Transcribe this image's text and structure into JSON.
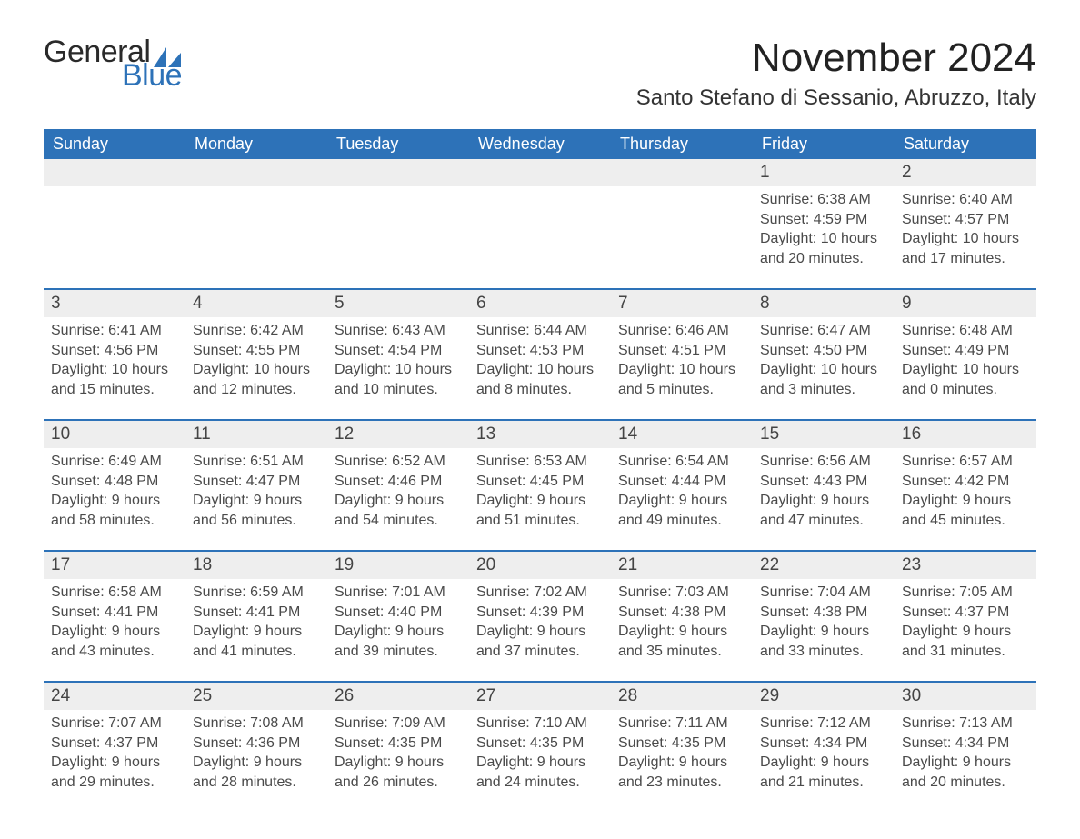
{
  "logo": {
    "word1": "General",
    "word2": "Blue",
    "accent_color": "#2d72b8"
  },
  "header": {
    "month_title": "November 2024",
    "location": "Santo Stefano di Sessanio, Abruzzo, Italy"
  },
  "colors": {
    "header_blue": "#2d72b8",
    "row_gray": "#eeeeee",
    "background": "#ffffff",
    "text": "#3a3a3a"
  },
  "typography": {
    "title_fontsize": 44,
    "location_fontsize": 24,
    "body_fontsize": 16,
    "weekday_fontsize": 18
  },
  "weekdays": [
    "Sunday",
    "Monday",
    "Tuesday",
    "Wednesday",
    "Thursday",
    "Friday",
    "Saturday"
  ],
  "weeks": [
    [
      null,
      null,
      null,
      null,
      null,
      {
        "day": "1",
        "sunrise": "Sunrise: 6:38 AM",
        "sunset": "Sunset: 4:59 PM",
        "daylight": "Daylight: 10 hours and 20 minutes."
      },
      {
        "day": "2",
        "sunrise": "Sunrise: 6:40 AM",
        "sunset": "Sunset: 4:57 PM",
        "daylight": "Daylight: 10 hours and 17 minutes."
      }
    ],
    [
      {
        "day": "3",
        "sunrise": "Sunrise: 6:41 AM",
        "sunset": "Sunset: 4:56 PM",
        "daylight": "Daylight: 10 hours and 15 minutes."
      },
      {
        "day": "4",
        "sunrise": "Sunrise: 6:42 AM",
        "sunset": "Sunset: 4:55 PM",
        "daylight": "Daylight: 10 hours and 12 minutes."
      },
      {
        "day": "5",
        "sunrise": "Sunrise: 6:43 AM",
        "sunset": "Sunset: 4:54 PM",
        "daylight": "Daylight: 10 hours and 10 minutes."
      },
      {
        "day": "6",
        "sunrise": "Sunrise: 6:44 AM",
        "sunset": "Sunset: 4:53 PM",
        "daylight": "Daylight: 10 hours and 8 minutes."
      },
      {
        "day": "7",
        "sunrise": "Sunrise: 6:46 AM",
        "sunset": "Sunset: 4:51 PM",
        "daylight": "Daylight: 10 hours and 5 minutes."
      },
      {
        "day": "8",
        "sunrise": "Sunrise: 6:47 AM",
        "sunset": "Sunset: 4:50 PM",
        "daylight": "Daylight: 10 hours and 3 minutes."
      },
      {
        "day": "9",
        "sunrise": "Sunrise: 6:48 AM",
        "sunset": "Sunset: 4:49 PM",
        "daylight": "Daylight: 10 hours and 0 minutes."
      }
    ],
    [
      {
        "day": "10",
        "sunrise": "Sunrise: 6:49 AM",
        "sunset": "Sunset: 4:48 PM",
        "daylight": "Daylight: 9 hours and 58 minutes."
      },
      {
        "day": "11",
        "sunrise": "Sunrise: 6:51 AM",
        "sunset": "Sunset: 4:47 PM",
        "daylight": "Daylight: 9 hours and 56 minutes."
      },
      {
        "day": "12",
        "sunrise": "Sunrise: 6:52 AM",
        "sunset": "Sunset: 4:46 PM",
        "daylight": "Daylight: 9 hours and 54 minutes."
      },
      {
        "day": "13",
        "sunrise": "Sunrise: 6:53 AM",
        "sunset": "Sunset: 4:45 PM",
        "daylight": "Daylight: 9 hours and 51 minutes."
      },
      {
        "day": "14",
        "sunrise": "Sunrise: 6:54 AM",
        "sunset": "Sunset: 4:44 PM",
        "daylight": "Daylight: 9 hours and 49 minutes."
      },
      {
        "day": "15",
        "sunrise": "Sunrise: 6:56 AM",
        "sunset": "Sunset: 4:43 PM",
        "daylight": "Daylight: 9 hours and 47 minutes."
      },
      {
        "day": "16",
        "sunrise": "Sunrise: 6:57 AM",
        "sunset": "Sunset: 4:42 PM",
        "daylight": "Daylight: 9 hours and 45 minutes."
      }
    ],
    [
      {
        "day": "17",
        "sunrise": "Sunrise: 6:58 AM",
        "sunset": "Sunset: 4:41 PM",
        "daylight": "Daylight: 9 hours and 43 minutes."
      },
      {
        "day": "18",
        "sunrise": "Sunrise: 6:59 AM",
        "sunset": "Sunset: 4:41 PM",
        "daylight": "Daylight: 9 hours and 41 minutes."
      },
      {
        "day": "19",
        "sunrise": "Sunrise: 7:01 AM",
        "sunset": "Sunset: 4:40 PM",
        "daylight": "Daylight: 9 hours and 39 minutes."
      },
      {
        "day": "20",
        "sunrise": "Sunrise: 7:02 AM",
        "sunset": "Sunset: 4:39 PM",
        "daylight": "Daylight: 9 hours and 37 minutes."
      },
      {
        "day": "21",
        "sunrise": "Sunrise: 7:03 AM",
        "sunset": "Sunset: 4:38 PM",
        "daylight": "Daylight: 9 hours and 35 minutes."
      },
      {
        "day": "22",
        "sunrise": "Sunrise: 7:04 AM",
        "sunset": "Sunset: 4:38 PM",
        "daylight": "Daylight: 9 hours and 33 minutes."
      },
      {
        "day": "23",
        "sunrise": "Sunrise: 7:05 AM",
        "sunset": "Sunset: 4:37 PM",
        "daylight": "Daylight: 9 hours and 31 minutes."
      }
    ],
    [
      {
        "day": "24",
        "sunrise": "Sunrise: 7:07 AM",
        "sunset": "Sunset: 4:37 PM",
        "daylight": "Daylight: 9 hours and 29 minutes."
      },
      {
        "day": "25",
        "sunrise": "Sunrise: 7:08 AM",
        "sunset": "Sunset: 4:36 PM",
        "daylight": "Daylight: 9 hours and 28 minutes."
      },
      {
        "day": "26",
        "sunrise": "Sunrise: 7:09 AM",
        "sunset": "Sunset: 4:35 PM",
        "daylight": "Daylight: 9 hours and 26 minutes."
      },
      {
        "day": "27",
        "sunrise": "Sunrise: 7:10 AM",
        "sunset": "Sunset: 4:35 PM",
        "daylight": "Daylight: 9 hours and 24 minutes."
      },
      {
        "day": "28",
        "sunrise": "Sunrise: 7:11 AM",
        "sunset": "Sunset: 4:35 PM",
        "daylight": "Daylight: 9 hours and 23 minutes."
      },
      {
        "day": "29",
        "sunrise": "Sunrise: 7:12 AM",
        "sunset": "Sunset: 4:34 PM",
        "daylight": "Daylight: 9 hours and 21 minutes."
      },
      {
        "day": "30",
        "sunrise": "Sunrise: 7:13 AM",
        "sunset": "Sunset: 4:34 PM",
        "daylight": "Daylight: 9 hours and 20 minutes."
      }
    ]
  ]
}
